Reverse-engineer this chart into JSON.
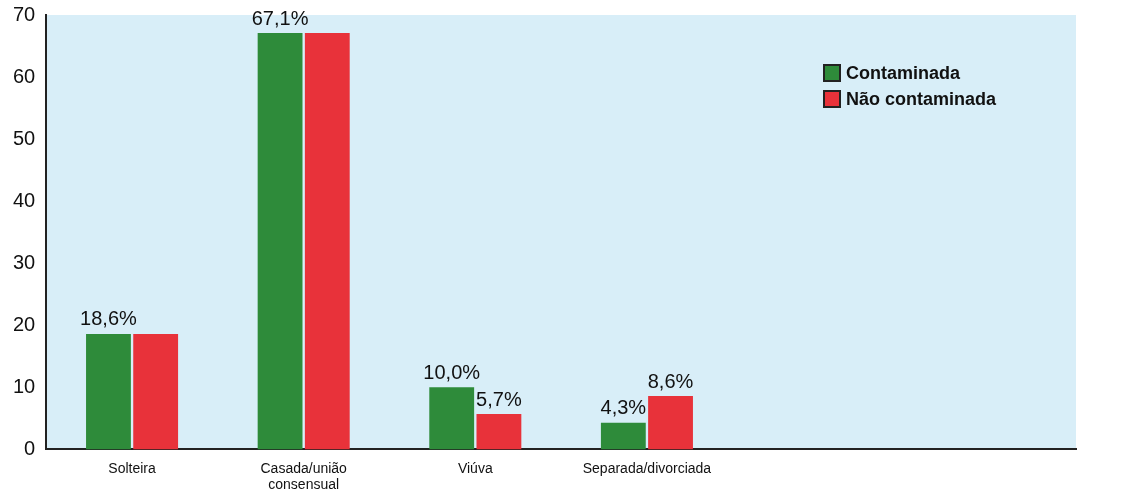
{
  "chart_data": {
    "type": "bar",
    "categories": [
      "Solteira",
      "Casada/união\nconsensual",
      "Viúva",
      "Separada/divorciada",
      null,
      null
    ],
    "series": [
      {
        "name": "Contaminada",
        "color": "#2e8b3a",
        "values": [
          18.6,
          67.1,
          10.0,
          4.3,
          null,
          null
        ],
        "value_labels": [
          "18,6%",
          "67,1%",
          "10,0%",
          "4,3%",
          null,
          null
        ]
      },
      {
        "name": "Não contaminada",
        "color": "#e8323a",
        "values": [
          18.6,
          67.1,
          5.7,
          8.6,
          null,
          null
        ],
        "value_labels": [
          null,
          null,
          "5,7%",
          "8,6%",
          null,
          null
        ]
      }
    ],
    "ylim": [
      0,
      70
    ],
    "yticks": [
      0,
      10,
      20,
      30,
      40,
      50,
      60,
      70
    ],
    "grid": false,
    "legend": "top right"
  }
}
